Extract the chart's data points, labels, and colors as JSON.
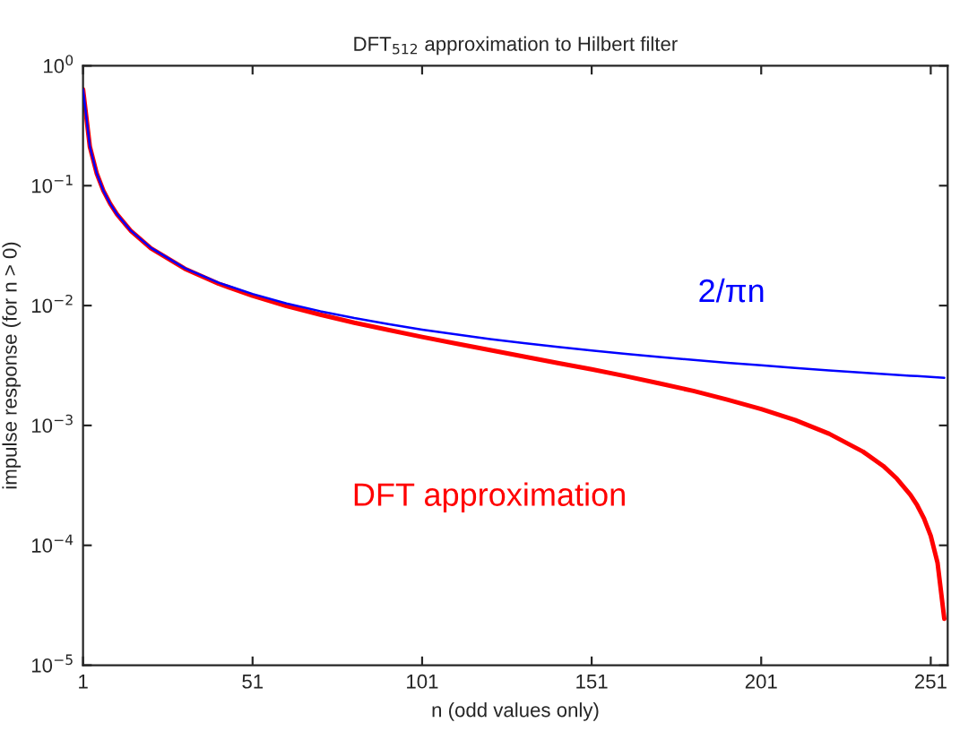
{
  "chart_data": {
    "type": "line",
    "title": "DFT$_{512}$ approximation to Hilbert filter",
    "xlabel": "n (odd values only)",
    "ylabel": "impulse response (for n > 0)",
    "x": [
      1,
      3,
      5,
      7,
      9,
      11,
      15,
      21,
      31,
      41,
      51,
      61,
      71,
      81,
      91,
      101,
      111,
      121,
      131,
      141,
      151,
      161,
      171,
      181,
      191,
      201,
      211,
      221,
      231,
      237,
      241,
      245,
      247,
      249,
      251,
      253,
      255
    ],
    "series": [
      {
        "name": "2/πn",
        "color": "#0000ff",
        "values": [
          0.6366,
          0.2122,
          0.1273,
          0.0909,
          0.0707,
          0.0579,
          0.0424,
          0.0303,
          0.0205,
          0.0155,
          0.0125,
          0.0104,
          0.00897,
          0.00786,
          0.007,
          0.0063,
          0.00574,
          0.00526,
          0.00486,
          0.00452,
          0.00422,
          0.00395,
          0.00372,
          0.00352,
          0.00333,
          0.00317,
          0.00302,
          0.00288,
          0.00276,
          0.00269,
          0.00264,
          0.0026,
          0.00258,
          0.00256,
          0.00254,
          0.00252,
          0.0025
        ]
      },
      {
        "name": "DFT approximation",
        "color": "#ff0000",
        "values": [
          0.6366,
          0.2122,
          0.1273,
          0.0909,
          0.0707,
          0.0578,
          0.0423,
          0.0301,
          0.0203,
          0.0152,
          0.01209,
          0.00991,
          0.0084,
          0.00719,
          0.00626,
          0.00547,
          0.00482,
          0.00425,
          0.00376,
          0.00332,
          0.00294,
          0.00258,
          0.00224,
          0.00194,
          0.00164,
          0.00137,
          0.00111,
          0.000853,
          0.000605,
          0.000459,
          0.00036,
          0.000264,
          0.000216,
          0.000168,
          0.00012,
          7.17e-05,
          2.44e-05
        ]
      }
    ],
    "log": "y",
    "xlim": [
      1,
      256
    ],
    "xticks": [
      1,
      51,
      101,
      151,
      201,
      251
    ],
    "ylim": [
      1e-05,
      1
    ],
    "yticks": [
      {
        "value": 1e-05,
        "label": "10$^{−5}$"
      },
      {
        "value": 0.0001,
        "label": "10$^{−4}$"
      },
      {
        "value": 0.001,
        "label": "10$^{−3}$"
      },
      {
        "value": 0.01,
        "label": "10$^{−2}$"
      },
      {
        "value": 0.1,
        "label": "10$^{−1}$"
      },
      {
        "value": 1,
        "label": "10$^{0}$"
      }
    ],
    "grid": false,
    "legend": false
  }
}
